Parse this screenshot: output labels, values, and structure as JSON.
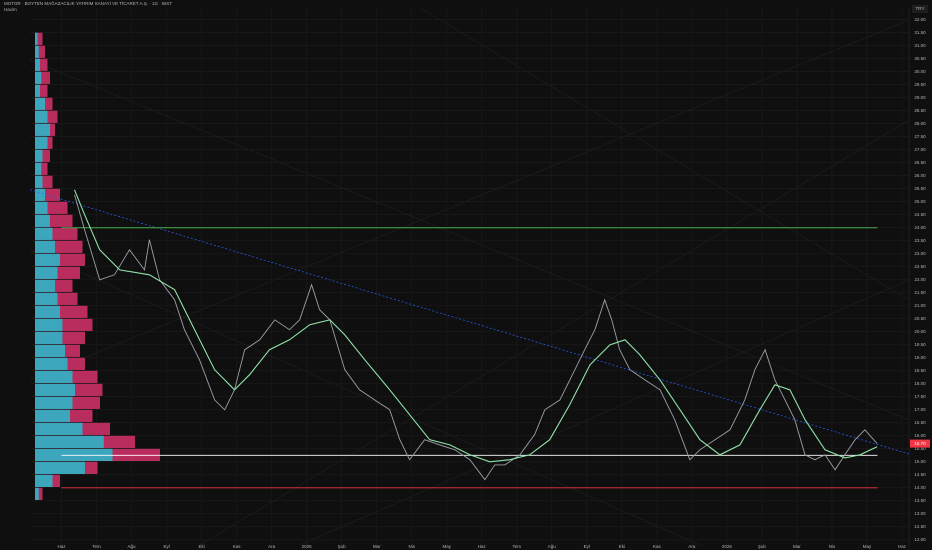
{
  "chart_data": {
    "type": "line",
    "title": "MOTOR · BOYTEN MAĞAZACILIK YATIRIM SANAYİ VE TİCARET A.Ş. · 1G · BIST",
    "subtitle": "Hacim",
    "currency": "TRY",
    "xlim": [
      -0.9,
      24.2
    ],
    "ylim": [
      11.8,
      32.45
    ],
    "grid": true,
    "xticks": [
      {
        "value": 0,
        "label": "Haz"
      },
      {
        "value": 1,
        "label": "Tem"
      },
      {
        "value": 2,
        "label": "Ağu"
      },
      {
        "value": 3,
        "label": "Eyl"
      },
      {
        "value": 4,
        "label": "Eki"
      },
      {
        "value": 5,
        "label": "Kas"
      },
      {
        "value": 6,
        "label": "Ara"
      },
      {
        "value": 7,
        "label": "2025"
      },
      {
        "value": 8,
        "label": "Şub"
      },
      {
        "value": 9,
        "label": "Mar"
      },
      {
        "value": 10,
        "label": "Nis"
      },
      {
        "value": 11,
        "label": "May"
      },
      {
        "value": 12,
        "label": "Haz"
      },
      {
        "value": 13,
        "label": "Tem"
      },
      {
        "value": 14,
        "label": "Ağu"
      },
      {
        "value": 15,
        "label": "Eyl"
      },
      {
        "value": 16,
        "label": "Eki"
      },
      {
        "value": 17,
        "label": "Kas"
      },
      {
        "value": 18,
        "label": "Ara"
      },
      {
        "value": 19,
        "label": "2026"
      },
      {
        "value": 20,
        "label": "Şub"
      },
      {
        "value": 21,
        "label": "Mar"
      },
      {
        "value": 22,
        "label": "Nis"
      },
      {
        "value": 23,
        "label": "May"
      },
      {
        "value": 24,
        "label": "Haz"
      }
    ],
    "yticks": [
      {
        "value": 12,
        "label": "12.00"
      },
      {
        "value": 12.5,
        "label": "12.50"
      },
      {
        "value": 13,
        "label": "13.00"
      },
      {
        "value": 13.5,
        "label": "13.50"
      },
      {
        "value": 14,
        "label": "14.00"
      },
      {
        "value": 14.5,
        "label": "14.50"
      },
      {
        "value": 15,
        "label": "15.00"
      },
      {
        "value": 15.5,
        "label": "15.50"
      },
      {
        "value": 16,
        "label": "16.00"
      },
      {
        "value": 16.5,
        "label": "16.50"
      },
      {
        "value": 17,
        "label": "17.00"
      },
      {
        "value": 17.5,
        "label": "17.50"
      },
      {
        "value": 18,
        "label": "18.00"
      },
      {
        "value": 18.5,
        "label": "18.50"
      },
      {
        "value": 19,
        "label": "19.00"
      },
      {
        "value": 19.5,
        "label": "19.50"
      },
      {
        "value": 20,
        "label": "20.00"
      },
      {
        "value": 20.5,
        "label": "20.50"
      },
      {
        "value": 21,
        "label": "21.00"
      },
      {
        "value": 21.5,
        "label": "21.50"
      },
      {
        "value": 22,
        "label": "22.00"
      },
      {
        "value": 22.5,
        "label": "22.50"
      },
      {
        "value": 23,
        "label": "23.00"
      },
      {
        "value": 23.5,
        "label": "23.50"
      },
      {
        "value": 24,
        "label": "24.00"
      },
      {
        "value": 24.5,
        "label": "24.50"
      },
      {
        "value": 25,
        "label": "25.00"
      },
      {
        "value": 25.5,
        "label": "25.50"
      },
      {
        "value": 26,
        "label": "26.00"
      },
      {
        "value": 26.5,
        "label": "26.50"
      },
      {
        "value": 27,
        "label": "27.00"
      },
      {
        "value": 27.5,
        "label": "27.50"
      },
      {
        "value": 28,
        "label": "28.00"
      },
      {
        "value": 28.5,
        "label": "28.50"
      },
      {
        "value": 29,
        "label": "29.00"
      },
      {
        "value": 29.5,
        "label": "29.50"
      },
      {
        "value": 30,
        "label": "30.00"
      },
      {
        "value": 30.5,
        "label": "30.50"
      },
      {
        "value": 31,
        "label": "31.00"
      },
      {
        "value": 31.5,
        "label": "31.50"
      },
      {
        "value": 32,
        "label": "32.00"
      }
    ],
    "series": [
      {
        "color": "#9aa0a6",
        "x": [
          0.37,
          0.66,
          1.09,
          1.51,
          1.94,
          2.37,
          2.51,
          2.8,
          3.23,
          3.51,
          3.94,
          4.37,
          4.66,
          4.94,
          5.23,
          5.66,
          6.09,
          6.51,
          6.8,
          7.14,
          7.37,
          7.66,
          8.09,
          8.51,
          8.94,
          9.37,
          9.66,
          9.94,
          10.37,
          10.8,
          11.23,
          11.66,
          12.09,
          12.37,
          12.66,
          13.09,
          13.51,
          13.8,
          14.23,
          14.66,
          14.94,
          15.23,
          15.51,
          15.71,
          15.94,
          16.23,
          16.66,
          17.09,
          17.51,
          17.94,
          18.23,
          18.66,
          19.09,
          19.51,
          19.8,
          20.09,
          20.37,
          20.66,
          20.94,
          21.23,
          21.51,
          21.8,
          22.09,
          22.37,
          22.66,
          22.94,
          23.29
        ],
        "values": [
          25.27,
          23.92,
          22,
          22.19,
          23.15,
          22.38,
          23.54,
          22,
          21.23,
          20.08,
          18.92,
          17.38,
          17,
          17.77,
          19.31,
          19.69,
          20.46,
          20.08,
          20.46,
          21.81,
          20.85,
          20.46,
          18.54,
          17.77,
          17.38,
          17,
          15.85,
          15.08,
          15.85,
          15.65,
          15.46,
          15.08,
          14.31,
          14.88,
          14.88,
          15.27,
          16.04,
          17,
          17.38,
          18.54,
          19.31,
          20.08,
          21.23,
          20.46,
          19.31,
          18.54,
          18.15,
          17.77,
          16.62,
          15.08,
          15.46,
          15.85,
          16.23,
          17.38,
          18.54,
          19.31,
          18.15,
          17.38,
          16.62,
          15.27,
          15.08,
          15.27,
          14.69,
          15.27,
          15.85,
          16.23,
          15.7
        ]
      },
      {
        "color": "#8fe3a8",
        "x": [
          0.37,
          0.66,
          1.09,
          1.66,
          2.51,
          3.23,
          3.8,
          4.37,
          4.94,
          5.37,
          5.94,
          6.51,
          7.09,
          7.66,
          8.09,
          8.66,
          9.37,
          9.94,
          10.51,
          11.09,
          11.66,
          12.23,
          12.8,
          13.37,
          13.94,
          14.51,
          15.09,
          15.66,
          16.09,
          16.51,
          17.09,
          17.66,
          18.23,
          18.8,
          19.37,
          19.94,
          20.37,
          20.8,
          21.23,
          21.8,
          22.37,
          22.8,
          23.29
        ],
        "values": [
          25.46,
          24.5,
          23.15,
          22.38,
          22.19,
          21.62,
          20.08,
          18.54,
          17.77,
          18.35,
          19.31,
          19.69,
          20.27,
          20.46,
          19.88,
          18.92,
          17.77,
          16.81,
          15.85,
          15.65,
          15.27,
          15,
          15.08,
          15.27,
          15.85,
          17.19,
          18.73,
          19.5,
          19.69,
          19.12,
          18.15,
          17,
          15.85,
          15.27,
          15.65,
          17,
          17.96,
          17.77,
          16.62,
          15.46,
          15.15,
          15.27,
          15.58
        ]
      }
    ],
    "hlines": [
      {
        "value": 24,
        "color": "#4caf50"
      },
      {
        "value": 15.25,
        "color": "#ffffff"
      },
      {
        "value": 14,
        "color": "#f23645"
      }
    ],
    "trendline": {
      "x": [
        -0.9,
        24.2
      ],
      "values": [
        25.46,
        15.3
      ],
      "color": "#2962ff"
    },
    "last_price": {
      "value": 15.7,
      "label": "15.70",
      "color": "#f23645"
    },
    "volume_profile": {
      "xlim": [
        0,
        100
      ],
      "total_color": "#d6336c",
      "up_color": "#2fb5c6",
      "levels": [
        31.25,
        30.75,
        30.25,
        29.75,
        29.25,
        28.75,
        28.25,
        27.75,
        27.25,
        26.75,
        26.25,
        25.75,
        25.25,
        24.75,
        24.25,
        23.75,
        23.25,
        22.75,
        22.25,
        21.75,
        21.25,
        20.75,
        20.25,
        19.75,
        19.25,
        18.75,
        18.25,
        17.75,
        17.25,
        16.75,
        16.25,
        15.75,
        15.25,
        14.75,
        14.25,
        13.75
      ],
      "total": [
        6,
        8,
        10,
        12,
        10,
        14,
        18,
        16,
        14,
        12,
        10,
        14,
        20,
        26,
        30,
        34,
        38,
        40,
        36,
        30,
        34,
        42,
        46,
        40,
        36,
        40,
        50,
        54,
        52,
        46,
        60,
        80,
        100,
        50,
        20,
        6
      ],
      "up": [
        2,
        3,
        4,
        5,
        4,
        8,
        10,
        12,
        10,
        6,
        5,
        6,
        8,
        10,
        12,
        14,
        16,
        20,
        18,
        16,
        18,
        20,
        22,
        22,
        24,
        26,
        30,
        32,
        30,
        28,
        38,
        55,
        62,
        40,
        14,
        3
      ]
    }
  }
}
